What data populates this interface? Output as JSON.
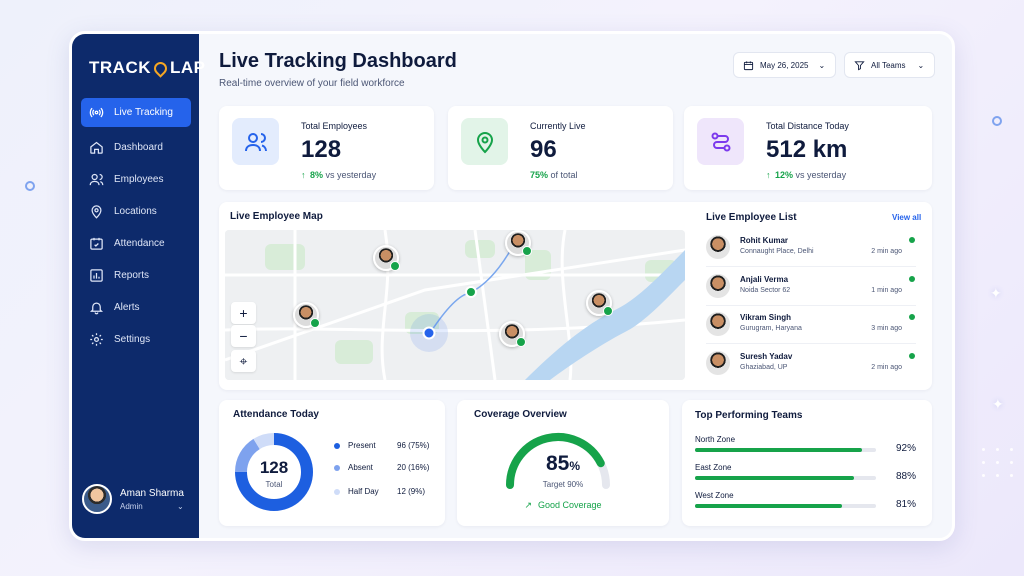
{
  "app": {
    "logo_text": "TRACK",
    "logo_text_end": "LAP"
  },
  "sidebar": {
    "items": [
      {
        "label": "Live Tracking",
        "icon": "broadcast-icon",
        "active": true
      },
      {
        "label": "Dashboard",
        "icon": "home-icon"
      },
      {
        "label": "Employees",
        "icon": "users-icon"
      },
      {
        "label": "Locations",
        "icon": "map-pin-icon"
      },
      {
        "label": "Attendance",
        "icon": "calendar-check-icon"
      },
      {
        "label": "Reports",
        "icon": "bar-chart-icon"
      },
      {
        "label": "Alerts",
        "icon": "bell-icon"
      },
      {
        "label": "Settings",
        "icon": "gear-icon"
      }
    ],
    "user": {
      "name": "Aman Sharma",
      "role": "Admin"
    }
  },
  "header": {
    "title": "Live Tracking Dashboard",
    "subtitle": "Real-time overview of your field workforce",
    "date_filter": "May 26, 2025",
    "team_filter": "All Teams"
  },
  "stats": [
    {
      "label": "Total Employees",
      "value": "128",
      "delta": "8%",
      "suffix": "vs yesterday",
      "icon": "users-icon",
      "arrow": "↑"
    },
    {
      "label": "Currently Live",
      "value": "96",
      "delta": "75%",
      "suffix": "of total",
      "icon": "map-pin-icon",
      "arrow": ""
    },
    {
      "label": "Total Distance Today",
      "value": "512 km",
      "delta": "12%",
      "suffix": "vs yesterday",
      "icon": "route-icon",
      "arrow": "↑"
    }
  ],
  "map": {
    "title": "Live Employee Map",
    "zoom_in": "+",
    "zoom_out": "−"
  },
  "employee_list": {
    "title": "Live Employee List",
    "view_all": "View all",
    "items": [
      {
        "name": "Rohit Kumar",
        "place": "Connaught Place, Delhi",
        "time": "2 min ago"
      },
      {
        "name": "Anjali Verma",
        "place": "Noida Sector 62",
        "time": "1 min ago"
      },
      {
        "name": "Vikram Singh",
        "place": "Gurugram, Haryana",
        "time": "3 min ago"
      },
      {
        "name": "Suresh Yadav",
        "place": "Ghaziabad, UP",
        "time": "2 min ago"
      }
    ]
  },
  "attendance": {
    "title": "Attendance Today",
    "total": "128",
    "total_label": "Total",
    "legend": [
      {
        "label": "Present",
        "value": "96 (75%)",
        "color": "#1d5fe0",
        "fraction": 0.75
      },
      {
        "label": "Absent",
        "value": "20 (16%)",
        "color": "#7ea2ee",
        "fraction": 0.16
      },
      {
        "label": "Half Day",
        "value": "12 (9%)",
        "color": "#cfdcf8",
        "fraction": 0.09
      }
    ]
  },
  "coverage": {
    "title": "Coverage Overview",
    "value": "85",
    "unit": "%",
    "percent": 85,
    "target": "Target 90%",
    "status": "Good Coverage"
  },
  "teams": {
    "title": "Top Performing Teams",
    "items": [
      {
        "label": "North Zone",
        "value": "92%",
        "percent": 92
      },
      {
        "label": "East Zone",
        "value": "88%",
        "percent": 88
      },
      {
        "label": "West Zone",
        "value": "81%",
        "percent": 81
      }
    ]
  },
  "colors": {
    "accent": "#2563eb",
    "sidebar": "#0d2a6b",
    "success": "#16a34a"
  }
}
